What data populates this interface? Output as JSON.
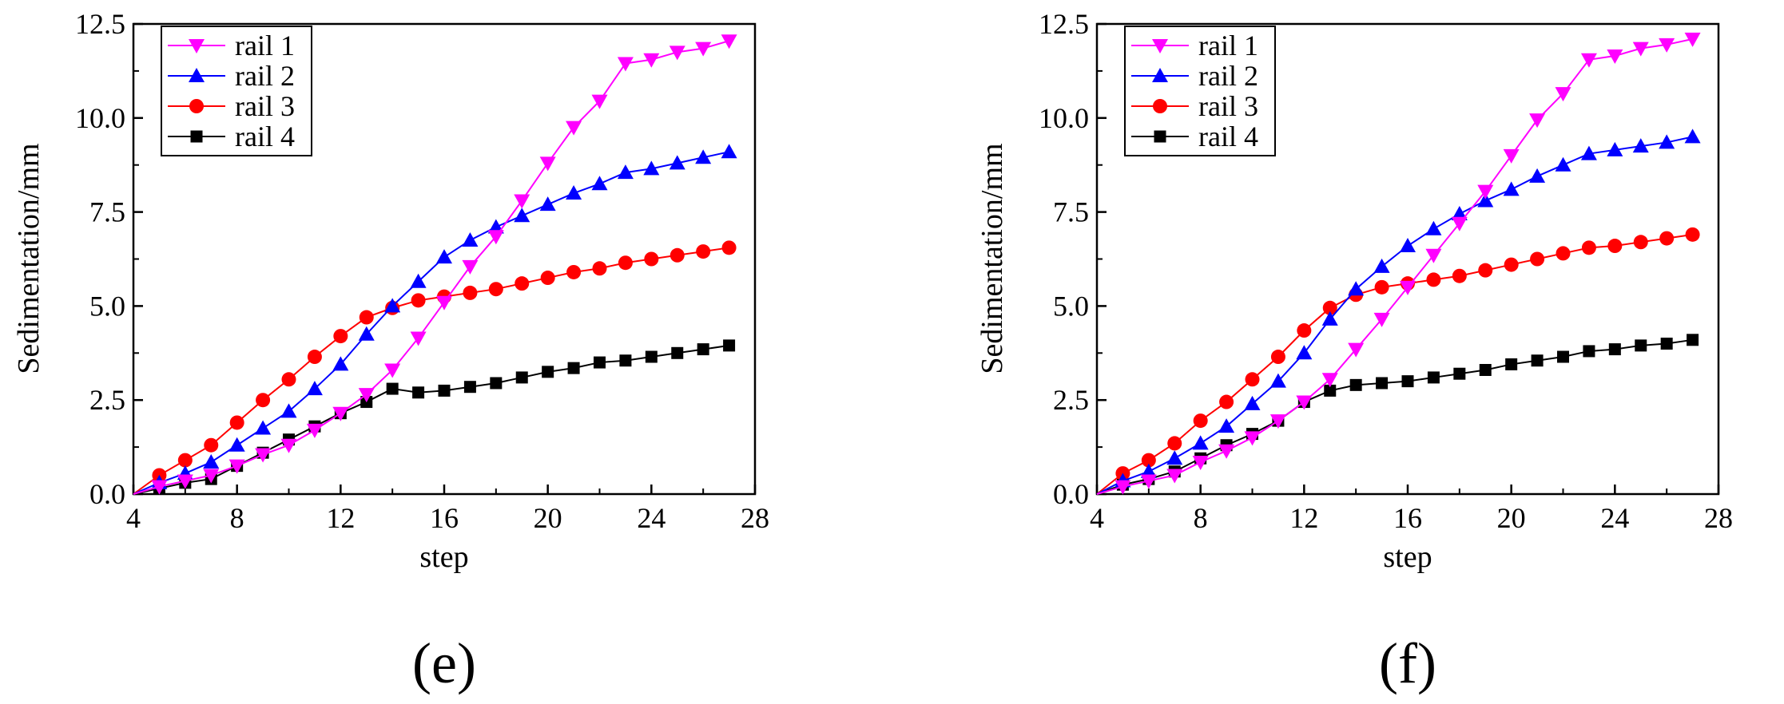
{
  "figure": {
    "panel_labels": [
      "(e)",
      "(f)"
    ]
  },
  "chart_data": [
    {
      "type": "line",
      "panel": "(e)",
      "title": "",
      "xlabel": "step",
      "ylabel": "Sedimentation/mm",
      "xlim": [
        4,
        28
      ],
      "ylim": [
        0,
        12.5
      ],
      "xticks": [
        "4",
        "8",
        "12",
        "16",
        "20",
        "24",
        "28"
      ],
      "yticks": [
        "0.0",
        "2.5",
        "5.0",
        "7.5",
        "10.0",
        "12.5"
      ],
      "legend": "top-left",
      "x": [
        4,
        5,
        6,
        7,
        8,
        9,
        10,
        11,
        12,
        13,
        14,
        15,
        16,
        17,
        18,
        19,
        20,
        21,
        22,
        23,
        24,
        25,
        26,
        27
      ],
      "series": [
        {
          "name": "rail 1",
          "color": "#ff00ff",
          "marker": "triangle-down",
          "values": [
            0.0,
            0.2,
            0.35,
            0.5,
            0.75,
            1.05,
            1.3,
            1.7,
            2.15,
            2.65,
            3.3,
            4.15,
            5.1,
            6.05,
            6.85,
            7.8,
            8.8,
            9.75,
            10.45,
            11.45,
            11.55,
            11.75,
            11.85,
            12.05
          ]
        },
        {
          "name": "rail 2",
          "color": "#0000ff",
          "marker": "triangle-up",
          "values": [
            0.0,
            0.3,
            0.55,
            0.85,
            1.3,
            1.75,
            2.2,
            2.8,
            3.45,
            4.25,
            5.0,
            5.65,
            6.3,
            6.75,
            7.1,
            7.4,
            7.7,
            8.0,
            8.25,
            8.55,
            8.65,
            8.8,
            8.95,
            9.1
          ]
        },
        {
          "name": "rail 3",
          "color": "#ff0000",
          "marker": "circle",
          "values": [
            0.0,
            0.5,
            0.9,
            1.3,
            1.9,
            2.5,
            3.05,
            3.65,
            4.2,
            4.7,
            4.95,
            5.15,
            5.25,
            5.35,
            5.45,
            5.6,
            5.75,
            5.9,
            6.0,
            6.15,
            6.25,
            6.35,
            6.45,
            6.55
          ]
        },
        {
          "name": "rail 4",
          "color": "#000000",
          "marker": "square",
          "values": [
            0.0,
            0.15,
            0.3,
            0.4,
            0.75,
            1.1,
            1.45,
            1.8,
            2.15,
            2.45,
            2.8,
            2.7,
            2.75,
            2.85,
            2.95,
            3.1,
            3.25,
            3.35,
            3.5,
            3.55,
            3.65,
            3.75,
            3.85,
            3.95
          ]
        }
      ]
    },
    {
      "type": "line",
      "panel": "(f)",
      "title": "",
      "xlabel": "step",
      "ylabel": "Sedimentation/mm",
      "xlim": [
        4,
        28
      ],
      "ylim": [
        0,
        12.5
      ],
      "xticks": [
        "4",
        "8",
        "12",
        "16",
        "20",
        "24",
        "28"
      ],
      "yticks": [
        "0.0",
        "2.5",
        "5.0",
        "7.5",
        "10.0",
        "12.5"
      ],
      "legend": "top-left",
      "x": [
        4,
        5,
        6,
        7,
        8,
        9,
        10,
        11,
        12,
        13,
        14,
        15,
        16,
        17,
        18,
        19,
        20,
        21,
        22,
        23,
        24,
        25,
        26,
        27
      ],
      "series": [
        {
          "name": "rail 1",
          "color": "#ff00ff",
          "marker": "triangle-down",
          "values": [
            0.0,
            0.2,
            0.35,
            0.5,
            0.85,
            1.15,
            1.5,
            1.95,
            2.45,
            3.05,
            3.85,
            4.65,
            5.5,
            6.35,
            7.2,
            8.05,
            9.0,
            9.95,
            10.65,
            11.55,
            11.65,
            11.85,
            11.95,
            12.1
          ]
        },
        {
          "name": "rail 2",
          "color": "#0000ff",
          "marker": "triangle-up",
          "values": [
            0.0,
            0.35,
            0.6,
            0.95,
            1.35,
            1.8,
            2.4,
            3.0,
            3.75,
            4.65,
            5.45,
            6.05,
            6.6,
            7.05,
            7.45,
            7.8,
            8.1,
            8.45,
            8.75,
            9.05,
            9.15,
            9.25,
            9.35,
            9.5
          ]
        },
        {
          "name": "rail 3",
          "color": "#ff0000",
          "marker": "circle",
          "values": [
            0.0,
            0.55,
            0.9,
            1.35,
            1.95,
            2.45,
            3.05,
            3.65,
            4.35,
            4.95,
            5.3,
            5.5,
            5.6,
            5.7,
            5.8,
            5.95,
            6.1,
            6.25,
            6.4,
            6.55,
            6.6,
            6.7,
            6.8,
            6.9
          ]
        },
        {
          "name": "rail 4",
          "color": "#000000",
          "marker": "square",
          "values": [
            0.0,
            0.25,
            0.4,
            0.6,
            0.95,
            1.3,
            1.6,
            1.95,
            2.45,
            2.75,
            2.9,
            2.95,
            3.0,
            3.1,
            3.2,
            3.3,
            3.45,
            3.55,
            3.65,
            3.8,
            3.85,
            3.95,
            4.0,
            4.1
          ]
        }
      ]
    }
  ]
}
